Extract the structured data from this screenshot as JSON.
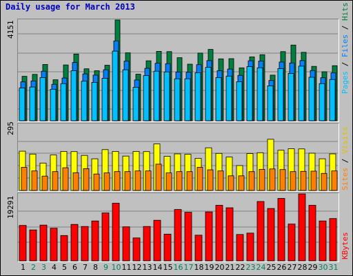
{
  "title": "Daily usage for March 2013",
  "colors": {
    "hits": "#008040",
    "files": "#0080ff",
    "pages": "#00c0ff",
    "visits": "#ffff00",
    "sites": "#ff8000",
    "kbytes": "#ff0000",
    "title": "#0000c0",
    "weekday_label": "#000000",
    "weekend_label": "#00805c"
  },
  "axis": {
    "top_max": "4151",
    "mid_max": "295",
    "bot_max": "19291",
    "right_top": {
      "pages": "Pages",
      "files": "Files",
      "hits": "Hits",
      "sep": " / "
    },
    "right_mid": {
      "sites": "Sites",
      "visits": "Visits",
      "sep": " / "
    },
    "right_bot": "KBytes"
  },
  "chart_data": {
    "type": "bar",
    "title": "Daily usage for March 2013",
    "categories": [
      "1",
      "2",
      "3",
      "4",
      "5",
      "6",
      "7",
      "8",
      "9",
      "10",
      "11",
      "12",
      "13",
      "14",
      "15",
      "16",
      "17",
      "18",
      "19",
      "20",
      "21",
      "22",
      "23",
      "24",
      "25",
      "26",
      "27",
      "28",
      "29",
      "30",
      "31"
    ],
    "weekend_days": [
      "2",
      "3",
      "9",
      "10",
      "16",
      "17",
      "23",
      "24",
      "30",
      "31"
    ],
    "panels": [
      {
        "ylim": [
          0,
          4151
        ],
        "series": [
          {
            "name": "Hits",
            "values": [
              1830,
              1910,
              2320,
              1690,
              2300,
              2750,
              2140,
              2060,
              2290,
              4151,
              2800,
              1920,
              2470,
              2860,
              2850,
              2600,
              2330,
              2790,
              2940,
              2550,
              2560,
              2180,
              2630,
              2720,
              1880,
              2850,
              3120,
              2820,
              2240,
              2020,
              2270
            ]
          },
          {
            "name": "Files",
            "values": [
              1600,
              1640,
              2040,
              1500,
              1760,
              2400,
              1930,
              1880,
              2100,
              3290,
              2460,
              1680,
              2160,
              2370,
              2350,
              2010,
              2000,
              2310,
              2480,
              2060,
              2130,
              1870,
              2470,
              2460,
              1660,
              2420,
              2380,
              2480,
              2070,
              1770,
              1970
            ]
          },
          {
            "name": "Pages",
            "values": [
              1350,
              1390,
              1780,
              1300,
              1530,
              2060,
              1630,
              1580,
              1750,
              2870,
              2100,
              1380,
              1860,
              2040,
              2010,
              1730,
              1730,
              1980,
              2200,
              1780,
              1840,
              1610,
              2230,
              2180,
              1440,
              2150,
              1950,
              2250,
              1790,
              1530,
              1700
            ]
          }
        ]
      },
      {
        "ylim": [
          0,
          295
        ],
        "series": [
          {
            "name": "Visits",
            "values": [
              175,
              162,
              122,
              158,
              174,
              173,
              156,
              141,
              182,
              174,
              153,
              174,
              173,
              207,
              152,
              163,
              161,
              143,
              190,
              165,
              149,
              111,
              164,
              168,
              228,
              179,
              186,
              185,
              166,
              141,
              163
            ]
          },
          {
            "name": "Sites",
            "values": [
              103,
              87,
              64,
              84,
              101,
              79,
              97,
              73,
              78,
              84,
              84,
              87,
              87,
              117,
              78,
              84,
              84,
              103,
              92,
              87,
              65,
              65,
              84,
              94,
              96,
              93,
              84,
              85,
              86,
              76,
              87
            ]
          }
        ]
      },
      {
        "ylim": [
          0,
          19291
        ],
        "series": [
          {
            "name": "KBytes",
            "values": [
              10200,
              8900,
              10300,
              9400,
              7300,
              10500,
              9900,
              11500,
              13800,
              16600,
              9800,
              6600,
              9900,
              11700,
              7700,
              14800,
              14000,
              7400,
              14100,
              16000,
              15300,
              7600,
              8000,
              17100,
              15100,
              18000,
              10600,
              19291,
              16000,
              11500,
              12200
            ]
          }
        ]
      }
    ]
  }
}
